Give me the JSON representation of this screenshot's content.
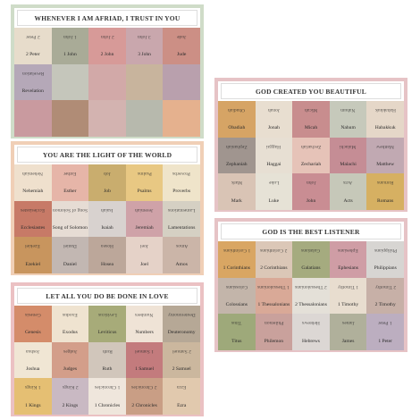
{
  "cards": [
    {
      "title": "WHENEVER I AM AFRIAD, I TRUST IN YOU",
      "rows": [
        [
          "2 Peter",
          "1 John",
          "2 John",
          "3 John",
          "Jude"
        ],
        [
          "Revelation"
        ]
      ]
    },
    {
      "title": "YOU ARE THE LIGHT OF THE WORLD",
      "rows": [
        [
          "Nehemiah",
          "Esther",
          "Job",
          "Psalms",
          "Proverbs"
        ],
        [
          "Ecclesiastes",
          "Song of Solomon",
          "Isaiah",
          "Jeremiah",
          "Lamentations"
        ],
        [
          "Ezekiel",
          "Daniel",
          "Hosea",
          "Joel",
          "Amos"
        ]
      ]
    },
    {
      "title": "LET ALL YOU DO BE DONE IN LOVE",
      "rows": [
        [
          "Genesis",
          "Exodus",
          "Leviticus",
          "Numbers",
          "Deuteronomy"
        ],
        [
          "Joshua",
          "Judges",
          "Ruth",
          "1 Samuel",
          "2 Samuel"
        ],
        [
          "1 Kings",
          "2 Kings",
          "1 Chronicles",
          "2 Chronicles",
          "Ezra"
        ]
      ]
    },
    {
      "title": "GOD CREATED YOU BEAUTIFUL",
      "rows": [
        [
          "Obadiah",
          "Jonah",
          "Micah",
          "Nahum",
          "Habakkuk"
        ],
        [
          "Zephaniah",
          "Haggai",
          "Zechariah",
          "Malachi",
          "Matthew"
        ],
        [
          "Mark",
          "Luke",
          "John",
          "Acts",
          "Romans"
        ]
      ]
    },
    {
      "title": "GOD IS THE BEST LISTENER",
      "rows": [
        [
          "1 Corinthians",
          "2 Corinthians",
          "Galatians",
          "Ephesians",
          "Philippians"
        ],
        [
          "Colossians",
          "1 Thessalonians",
          "2 Thessalonians",
          "1 Timothy",
          "2 Timothy"
        ],
        [
          "Titus",
          "Philemon",
          "Hebrews",
          "James",
          "1 Peter"
        ]
      ]
    }
  ]
}
